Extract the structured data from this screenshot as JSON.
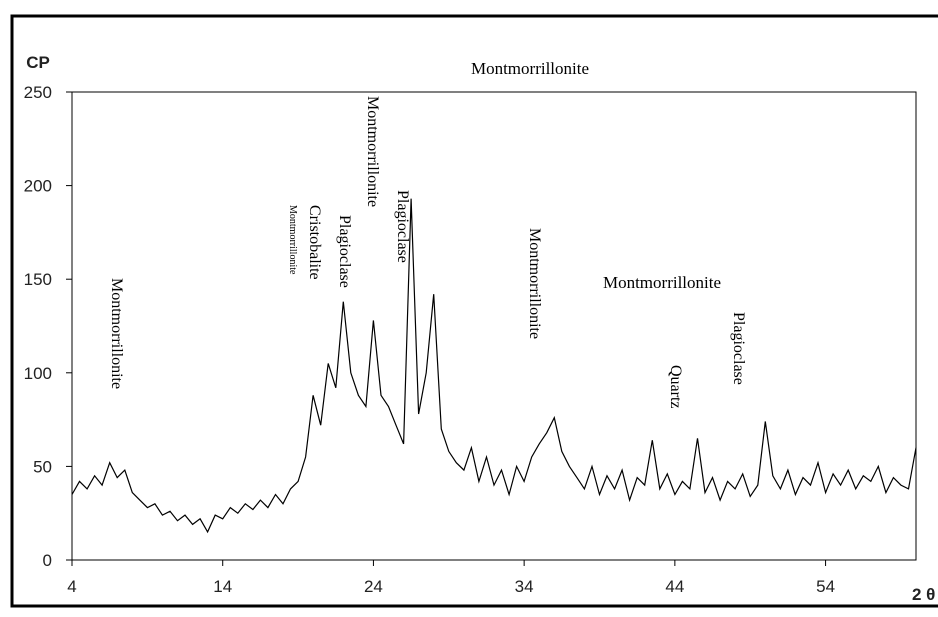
{
  "chart_data": {
    "type": "line",
    "y_label": "CP",
    "x_label": "2 θ",
    "annotations": [
      "Montmorrillonite",
      "Montmorrillonite",
      "Montmorrillonite",
      "Cristobalite",
      "Plagioclase",
      "Montmorrillonite",
      "Plagioclase",
      "Montmorrillonite",
      "Montmorrillonite",
      "Quartz",
      "Plagioclase"
    ],
    "x": [
      4,
      4.5,
      5,
      5.5,
      6,
      6.5,
      7,
      7.5,
      8,
      8.5,
      9,
      9.5,
      10,
      10.5,
      11,
      11.5,
      12,
      12.5,
      13,
      13.5,
      14,
      14.5,
      15,
      15.5,
      16,
      16.5,
      17,
      17.5,
      18,
      18.5,
      19,
      19.5,
      20,
      20.5,
      21,
      21.5,
      22,
      22.5,
      23,
      23.5,
      24,
      24.5,
      25,
      25.5,
      26,
      26.5,
      27,
      27.5,
      28,
      28.5,
      29,
      29.5,
      30,
      30.5,
      31,
      31.5,
      32,
      32.5,
      33,
      33.5,
      34,
      34.5,
      35,
      35.5,
      36,
      36.5,
      37,
      37.5,
      38,
      38.5,
      39,
      39.5,
      40,
      40.5,
      41,
      41.5,
      42,
      42.5,
      43,
      43.5,
      44,
      44.5,
      45,
      45.5,
      46,
      46.5,
      47,
      47.5,
      48,
      48.5,
      49,
      49.5,
      50,
      50.5,
      51,
      51.5,
      52,
      52.5,
      53,
      53.5,
      54,
      54.5,
      55,
      55.5,
      56,
      56.5,
      57,
      57.5,
      58,
      58.5,
      59,
      59.5,
      60
    ],
    "series": [
      {
        "color": "#000000",
        "values": [
          35,
          42,
          38,
          45,
          40,
          52,
          44,
          48,
          36,
          32,
          28,
          30,
          24,
          26,
          21,
          24,
          19,
          22,
          15,
          24,
          22,
          28,
          25,
          30,
          27,
          32,
          28,
          35,
          30,
          38,
          42,
          55,
          88,
          72,
          105,
          92,
          138,
          100,
          88,
          82,
          128,
          88,
          82,
          72,
          62,
          193,
          78,
          100,
          142,
          70,
          58,
          52,
          48,
          60,
          42,
          55,
          40,
          48,
          35,
          50,
          42,
          55,
          62,
          68,
          76,
          58,
          50,
          44,
          38,
          50,
          35,
          45,
          38,
          48,
          32,
          44,
          40,
          64,
          38,
          46,
          35,
          42,
          38,
          65,
          36,
          44,
          32,
          42,
          38,
          46,
          34,
          40,
          74,
          45,
          38,
          48,
          35,
          44,
          40,
          52,
          36,
          46,
          40,
          48,
          38,
          45,
          42,
          50,
          36,
          44,
          40,
          38,
          60
        ]
      }
    ],
    "xlim": [
      4,
      60
    ],
    "ylim": [
      0,
      250
    ],
    "xticks": [
      4,
      14,
      24,
      34,
      44,
      54
    ],
    "yticks": [
      0,
      50,
      100,
      150,
      200,
      250
    ]
  }
}
